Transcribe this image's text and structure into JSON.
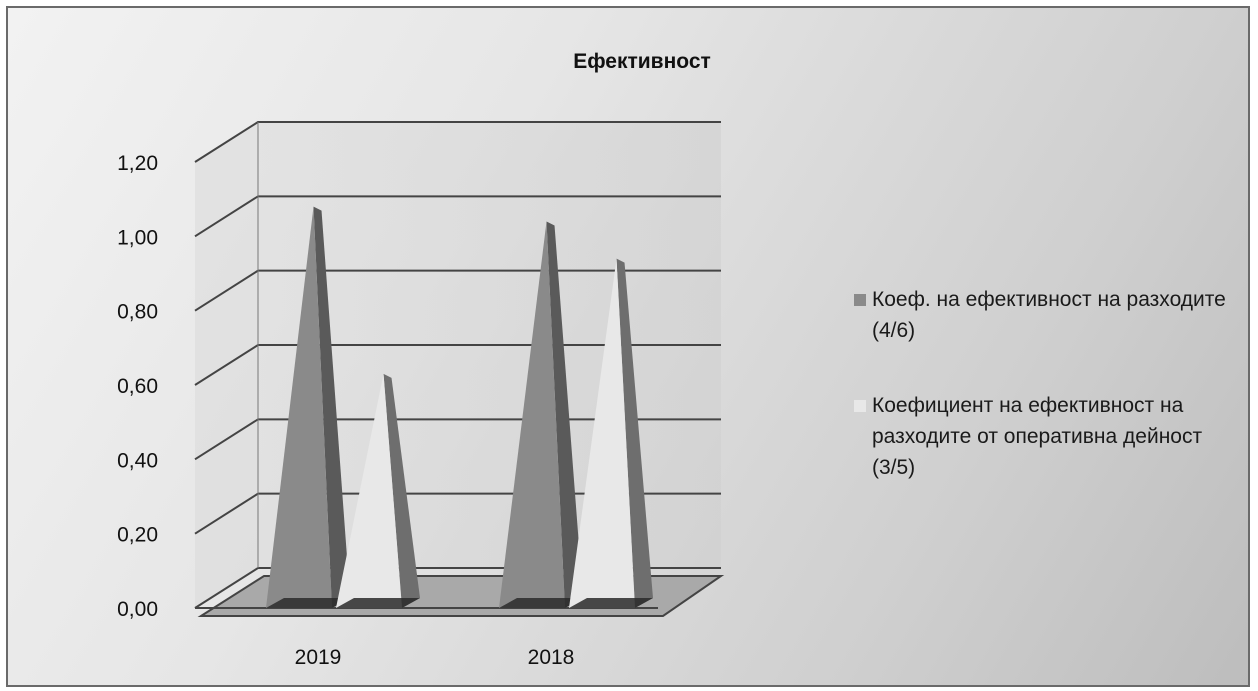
{
  "chart_data": {
    "type": "bar",
    "title": "Ефективност",
    "categories": [
      "2019",
      "2018"
    ],
    "series": [
      {
        "name": "Коеф. на ефективност на разходите (4/6)",
        "values": [
          1.08,
          1.04
        ],
        "color": "#8a8a8a"
      },
      {
        "name": "Коефициент на ефективност на разходите от оперативна дейност (3/5)",
        "values": [
          0.63,
          0.94
        ],
        "color": "#e8e8e8"
      }
    ],
    "y_ticks": [
      "0,00",
      "0,20",
      "0,40",
      "0,60",
      "0,80",
      "1,00",
      "1,20"
    ],
    "ylim": [
      0,
      1.2
    ],
    "bar_shape": "pyramid",
    "grid": true,
    "legend_position": "right"
  }
}
